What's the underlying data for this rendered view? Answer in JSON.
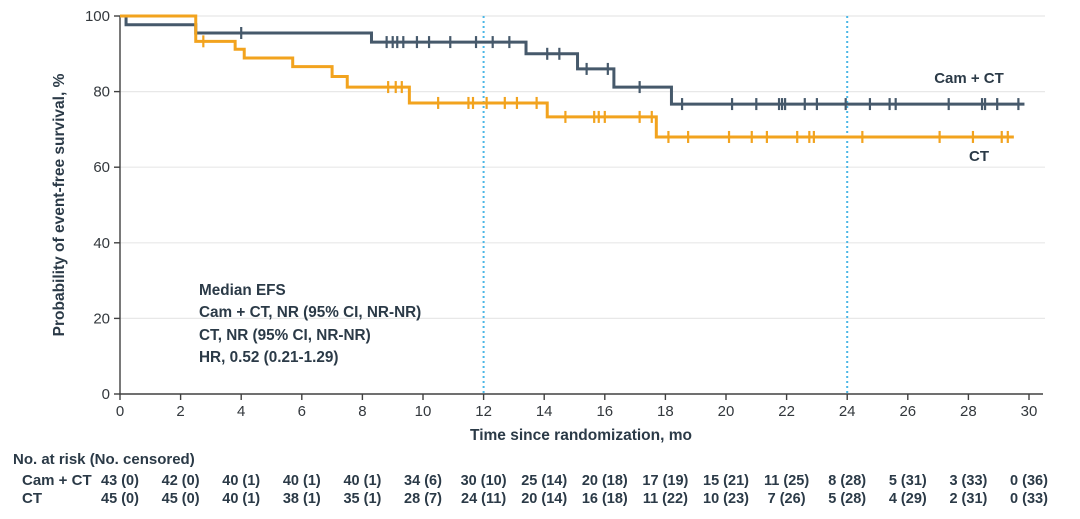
{
  "chart_data": {
    "type": "line",
    "subtype": "kaplan_meier_step",
    "title": "",
    "xlabel": "Time since randomization, mo",
    "ylabel": "Probability of event-free survival, %",
    "xlim": [
      0,
      30
    ],
    "ylim": [
      0,
      100
    ],
    "xticks": [
      0,
      2,
      4,
      6,
      8,
      10,
      12,
      14,
      16,
      18,
      20,
      22,
      24,
      26,
      28,
      30
    ],
    "yticks": [
      0,
      20,
      40,
      60,
      80,
      100
    ],
    "grid": "horizontal",
    "legend_position": "inline-right-of-curves",
    "reference_lines_x": [
      12,
      24
    ],
    "annotations": [
      "Median EFS",
      "Cam + CT, NR (95% CI, NR-NR)",
      "CT, NR (95% CI, NR-NR)",
      "HR, 0.52 (0.21-1.29)"
    ],
    "colors": {
      "cam_ct_line": "#46596b",
      "ct_line": "#f2a31e",
      "reference_line": "#4ab7e6",
      "grid_line": "#e8e8e8",
      "axis_line": "#404040",
      "text": "#2b3a47"
    },
    "series": [
      {
        "name": "Cam + CT",
        "color": "#46596b",
        "steps": [
          [
            0,
            100
          ],
          [
            0.2,
            97.7
          ],
          [
            2.5,
            95.5
          ],
          [
            8.3,
            93.1
          ],
          [
            13.4,
            90.0
          ],
          [
            15.1,
            86.0
          ],
          [
            16.3,
            81.2
          ],
          [
            18.2,
            76.7
          ]
        ],
        "end_x": 29.85,
        "censor_x": [
          4.0,
          8.8,
          9.0,
          9.15,
          9.35,
          9.8,
          10.2,
          10.9,
          11.75,
          12.3,
          12.85,
          14.1,
          14.5,
          15.4,
          16.1,
          17.15,
          18.55,
          20.2,
          21.0,
          21.75,
          21.85,
          21.95,
          22.6,
          23.0,
          23.95,
          24.75,
          25.4,
          25.6,
          27.35,
          28.45,
          28.55,
          28.95,
          29.65
        ]
      },
      {
        "name": "CT",
        "color": "#f2a31e",
        "steps": [
          [
            0,
            100
          ],
          [
            2.5,
            93.3
          ],
          [
            3.8,
            91.2
          ],
          [
            4.1,
            88.9
          ],
          [
            5.7,
            86.6
          ],
          [
            7.0,
            84.0
          ],
          [
            7.5,
            81.2
          ],
          [
            9.55,
            77.0
          ],
          [
            14.1,
            73.3
          ],
          [
            17.7,
            68.0
          ]
        ],
        "end_x": 29.5,
        "censor_x": [
          2.75,
          8.85,
          9.1,
          9.3,
          10.5,
          11.5,
          11.65,
          12.1,
          12.7,
          13.1,
          13.75,
          14.7,
          15.65,
          15.8,
          16.0,
          17.15,
          17.55,
          18.1,
          18.75,
          20.1,
          20.85,
          21.35,
          22.35,
          22.75,
          22.9,
          24.5,
          27.05,
          28.15,
          29.1,
          29.3
        ]
      }
    ],
    "risk_table": {
      "header": "No. at risk (No. censored)",
      "time_points": [
        0,
        2,
        4,
        6,
        8,
        10,
        12,
        14,
        16,
        18,
        20,
        22,
        24,
        26,
        28,
        30
      ],
      "rows": [
        {
          "label": "Cam + CT",
          "values": [
            "43 (0)",
            "42 (0)",
            "40 (1)",
            "40 (1)",
            "40 (1)",
            "34 (6)",
            "30 (10)",
            "25 (14)",
            "20 (18)",
            "17 (19)",
            "15 (21)",
            "11 (25)",
            "8 (28)",
            "5 (31)",
            "3 (33)",
            "0 (36)"
          ]
        },
        {
          "label": "CT",
          "values": [
            "45 (0)",
            "45 (0)",
            "40 (1)",
            "38 (1)",
            "35 (1)",
            "28 (7)",
            "24 (11)",
            "20 (14)",
            "16 (18)",
            "11 (22)",
            "10 (23)",
            "7 (26)",
            "5 (28)",
            "4 (29)",
            "2 (31)",
            "0 (33)"
          ]
        }
      ]
    }
  }
}
